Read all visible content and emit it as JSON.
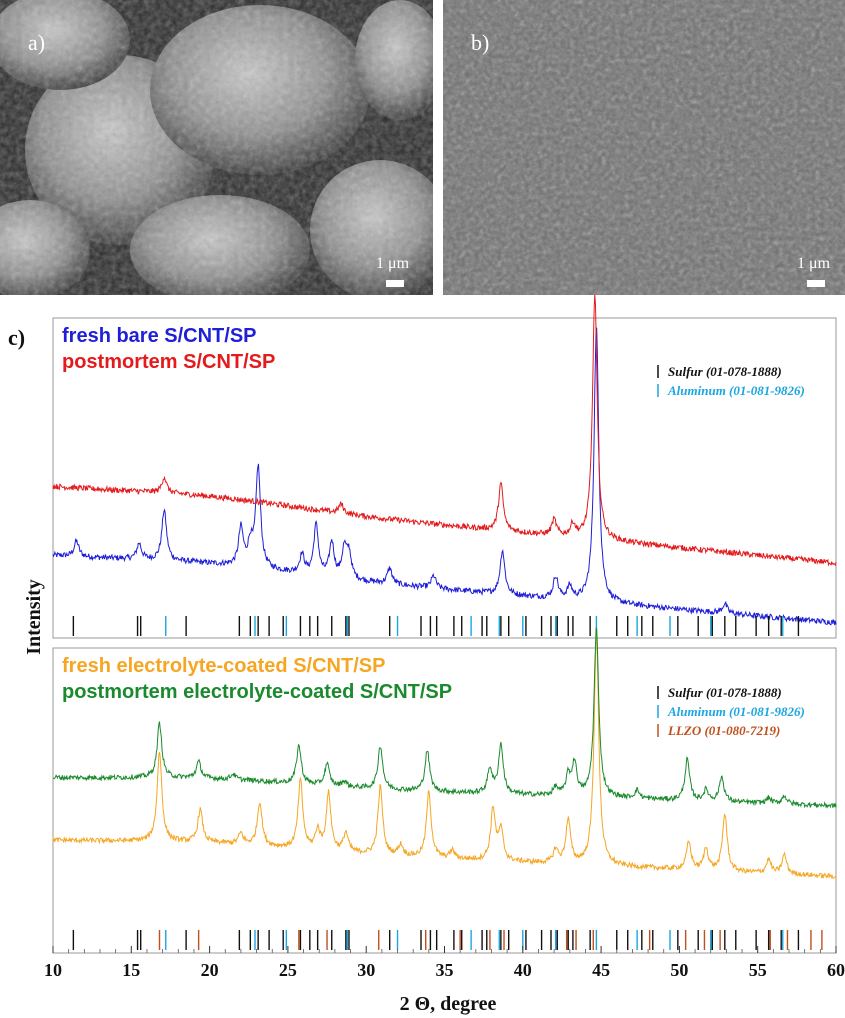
{
  "panels": {
    "a": {
      "label": "a)",
      "scale": "1 μm"
    },
    "b": {
      "label": "b)",
      "scale": "1 μm"
    },
    "c": {
      "label": "c)"
    }
  },
  "colors": {
    "blue": "#1f1fd8",
    "red": "#e41a1c",
    "orange": "#f5a623",
    "green": "#1b8a2e",
    "black": "#111111",
    "cyan": "#1aa6e0",
    "llzo": "#c0501c"
  },
  "chart_data": {
    "type": "line",
    "xlabel": "2 Θ, degree",
    "ylabel": "Intensity",
    "xlim": [
      10,
      60
    ],
    "x_ticks": [
      10,
      15,
      20,
      25,
      30,
      35,
      40,
      45,
      50,
      55,
      60
    ],
    "top_panel": {
      "legend": [
        {
          "name": "fresh bare S/CNT/SP",
          "color": "#1f1fd8"
        },
        {
          "name": "postmortem S/CNT/SP",
          "color": "#e41a1c"
        }
      ],
      "references": [
        {
          "name": "Sulfur (01-078-1888)",
          "color": "#111111"
        },
        {
          "name": "Aluminum (01-081-9826)",
          "color": "#1aa6e0"
        }
      ],
      "series": [
        {
          "name": "fresh bare S/CNT/SP",
          "color": "#1f1fd8",
          "baseline_start": 0.24,
          "baseline_end": 0.03,
          "peaks": [
            [
              11.5,
              0.05
            ],
            [
              15.5,
              0.05
            ],
            [
              17.1,
              0.16
            ],
            [
              22.0,
              0.12
            ],
            [
              22.6,
              0.07
            ],
            [
              23.1,
              0.32
            ],
            [
              25.9,
              0.06
            ],
            [
              26.8,
              0.16
            ],
            [
              27.8,
              0.11
            ],
            [
              28.6,
              0.09
            ],
            [
              28.9,
              0.08
            ],
            [
              31.5,
              0.05
            ],
            [
              34.3,
              0.04
            ],
            [
              38.7,
              0.14
            ],
            [
              42.1,
              0.07
            ],
            [
              43.0,
              0.04
            ],
            [
              44.7,
              0.88
            ],
            [
              52.9,
              0.03
            ]
          ]
        },
        {
          "name": "postmortem S/CNT/SP",
          "color": "#e41a1c",
          "baseline_start": 0.46,
          "baseline_end": 0.22,
          "peaks": [
            [
              17.1,
              0.05
            ],
            [
              28.4,
              0.03
            ],
            [
              38.6,
              0.15
            ],
            [
              42.0,
              0.05
            ],
            [
              43.2,
              0.04
            ],
            [
              44.6,
              0.78
            ]
          ]
        }
      ],
      "sulfur_lines": [
        11.3,
        15.4,
        15.6,
        18.5,
        21.9,
        22.6,
        23.1,
        23.8,
        24.7,
        25.8,
        26.4,
        26.9,
        27.8,
        28.7,
        28.9,
        31.5,
        33.5,
        34.1,
        34.5,
        35.6,
        36.1,
        37.4,
        37.7,
        38.6,
        39.1,
        40.2,
        41.2,
        41.8,
        42.2,
        42.9,
        43.2,
        44.3,
        46.0,
        46.7,
        47.6,
        48.3,
        49.9,
        51.2,
        52.1,
        52.9,
        53.6,
        54.9,
        55.7,
        56.5,
        57.6
      ],
      "aluminum_lines": [
        17.2,
        22.9,
        24.9,
        28.8,
        32.0,
        36.7,
        38.5,
        40.0,
        42.1,
        44.7,
        47.3,
        49.4,
        52.0,
        56.6
      ]
    },
    "bottom_panel": {
      "legend": [
        {
          "name": "fresh electrolyte-coated S/CNT/SP",
          "color": "#f5a623"
        },
        {
          "name": "postmortem electrolyte-coated S/CNT/SP",
          "color": "#1b8a2e"
        }
      ],
      "references": [
        {
          "name": "Sulfur (01-078-1888)",
          "color": "#111111"
        },
        {
          "name": "Aluminum (01-081-9826)",
          "color": "#1aa6e0"
        },
        {
          "name": "LLZO (01-080-7219)",
          "color": "#c0501c"
        }
      ],
      "series": [
        {
          "name": "fresh electrolyte-coated S/CNT/SP",
          "color": "#f5a623",
          "baseline_start": 0.29,
          "baseline_end": 0.16,
          "peaks": [
            [
              16.8,
              0.33
            ],
            [
              19.4,
              0.12
            ],
            [
              22.0,
              0.04
            ],
            [
              23.2,
              0.16
            ],
            [
              25.8,
              0.25
            ],
            [
              26.9,
              0.07
            ],
            [
              27.6,
              0.21
            ],
            [
              28.7,
              0.07
            ],
            [
              30.9,
              0.25
            ],
            [
              32.2,
              0.04
            ],
            [
              34.0,
              0.24
            ],
            [
              35.5,
              0.03
            ],
            [
              38.1,
              0.19
            ],
            [
              38.6,
              0.11
            ],
            [
              42.1,
              0.05
            ],
            [
              42.9,
              0.16
            ],
            [
              44.7,
              0.85
            ],
            [
              50.6,
              0.1
            ],
            [
              51.7,
              0.08
            ],
            [
              52.9,
              0.21
            ],
            [
              55.7,
              0.05
            ],
            [
              56.7,
              0.07
            ]
          ]
        },
        {
          "name": "postmortem electrolyte-coated S/CNT/SP",
          "color": "#1b8a2e",
          "baseline_start": 0.52,
          "baseline_end": 0.42,
          "peaks": [
            [
              16.8,
              0.2
            ],
            [
              19.3,
              0.06
            ],
            [
              21.5,
              0.02
            ],
            [
              25.7,
              0.14
            ],
            [
              27.5,
              0.08
            ],
            [
              28.6,
              0.02
            ],
            [
              30.9,
              0.16
            ],
            [
              33.9,
              0.15
            ],
            [
              37.9,
              0.09
            ],
            [
              38.6,
              0.18
            ],
            [
              42.1,
              0.03
            ],
            [
              42.9,
              0.07
            ],
            [
              43.3,
              0.12
            ],
            [
              44.7,
              0.62
            ],
            [
              47.3,
              0.03
            ],
            [
              50.5,
              0.15
            ],
            [
              51.7,
              0.04
            ],
            [
              52.7,
              0.09
            ],
            [
              55.7,
              0.02
            ],
            [
              56.7,
              0.03
            ]
          ]
        }
      ],
      "sulfur_lines": [
        11.3,
        15.4,
        15.6,
        18.5,
        21.9,
        22.6,
        23.1,
        23.8,
        24.7,
        25.8,
        26.4,
        26.9,
        27.8,
        28.7,
        28.9,
        31.5,
        33.5,
        34.1,
        34.5,
        35.6,
        36.1,
        37.4,
        37.7,
        38.6,
        39.1,
        40.2,
        41.2,
        41.8,
        42.2,
        42.9,
        43.2,
        44.3,
        46.0,
        46.7,
        47.6,
        48.3,
        49.9,
        51.2,
        52.1,
        52.9,
        53.6,
        54.9,
        55.7,
        56.5,
        57.6
      ],
      "aluminum_lines": [
        17.2,
        22.9,
        24.9,
        28.8,
        32.0,
        36.7,
        38.5,
        40.0,
        42.1,
        44.7,
        47.3,
        49.4,
        52.0,
        56.6
      ],
      "llzo_lines": [
        16.8,
        19.3,
        25.7,
        27.5,
        30.8,
        33.8,
        36.0,
        37.9,
        38.8,
        42.8,
        43.4,
        44.5,
        48.1,
        50.4,
        51.6,
        52.6,
        55.8,
        56.9,
        58.4,
        59.1
      ]
    }
  }
}
